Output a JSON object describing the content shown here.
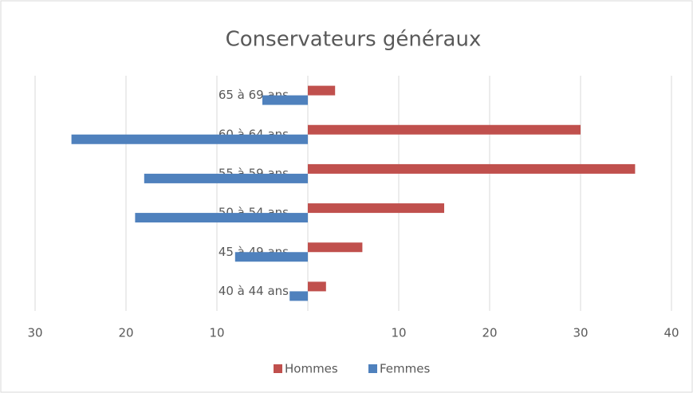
{
  "chart_data": {
    "type": "bar",
    "orientation": "horizontal",
    "title": "Conservateurs généraux",
    "categories": [
      "65 à 69 ans",
      "60 à 64 ans",
      "55 à 59 ans",
      "50 à 54 ans",
      "45 à 49 ans",
      "40 à 44 ans"
    ],
    "series": [
      {
        "name": "Hommes",
        "color": "#c0504d",
        "values": [
          3,
          30,
          36,
          15,
          6,
          2
        ]
      },
      {
        "name": "Femmes",
        "color": "#4f81bd",
        "values": [
          -5,
          -26,
          -18,
          -19,
          -8,
          -2
        ]
      }
    ],
    "xlim": [
      -30,
      40
    ],
    "xticks": [
      {
        "value": -30,
        "label": "30"
      },
      {
        "value": -20,
        "label": "20"
      },
      {
        "value": -10,
        "label": "10"
      },
      10,
      20,
      30,
      40
    ],
    "grid": true,
    "legend": "bottom"
  }
}
